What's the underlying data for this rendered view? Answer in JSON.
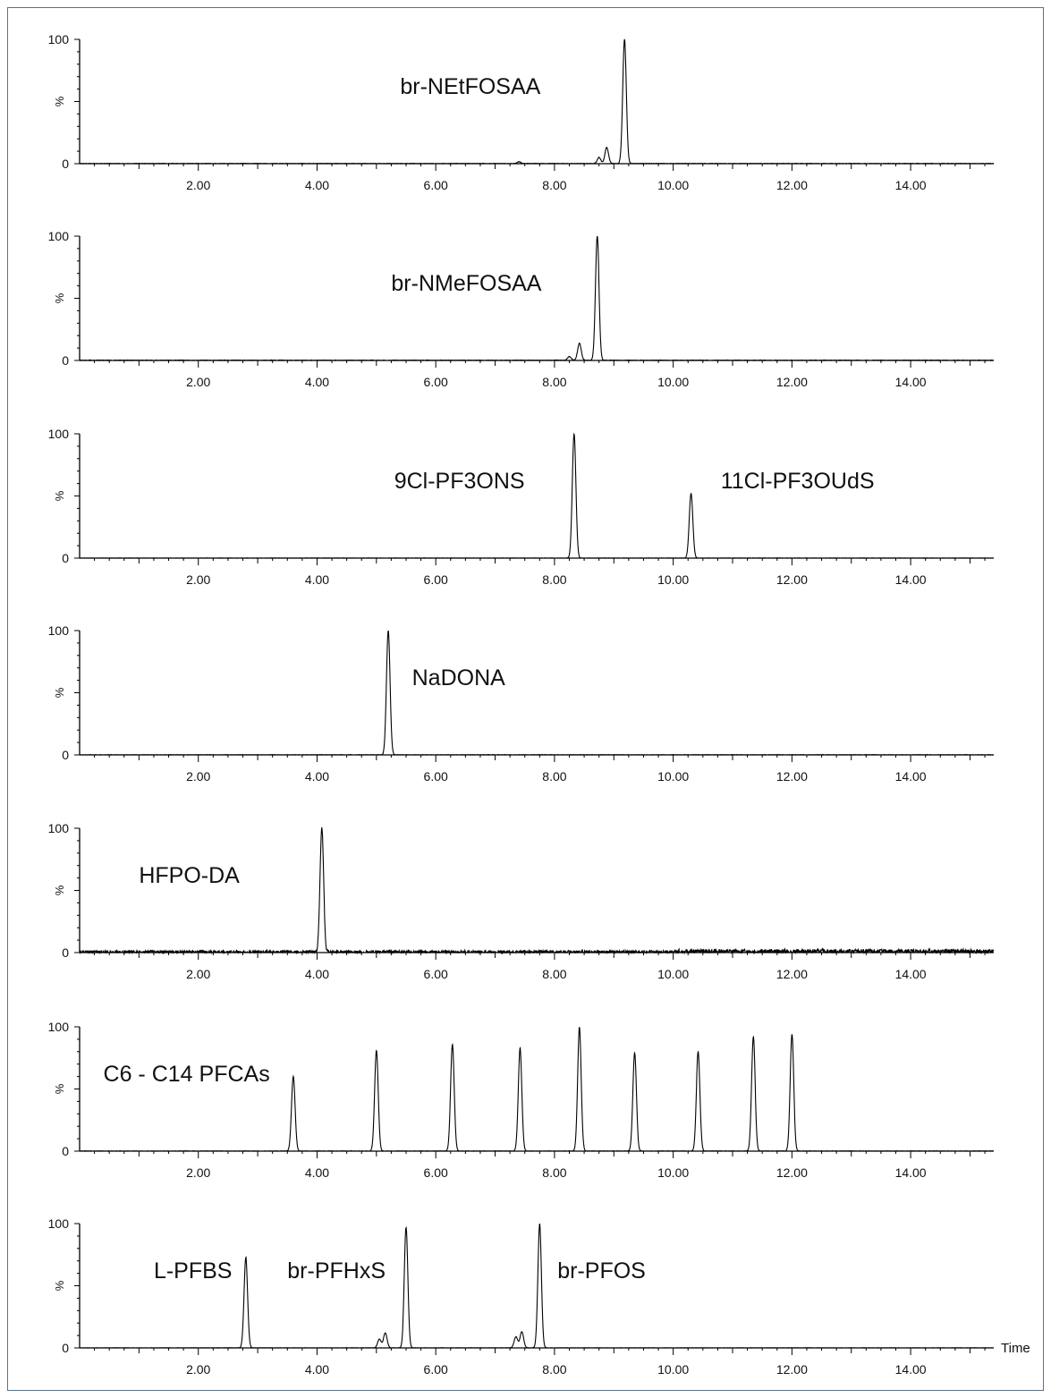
{
  "chart_data": [
    {
      "type": "line",
      "title": "",
      "xlabel": "",
      "ylabel": "%",
      "xlim": [
        0,
        15.4
      ],
      "ylim": [
        0,
        100
      ],
      "x_ticks": [
        "2.00",
        "4.00",
        "6.00",
        "8.00",
        "10.00",
        "12.00",
        "14.00"
      ],
      "y_ticks": [
        "0",
        "100"
      ],
      "labels": [
        {
          "text": "br-NEtFOSAA",
          "x": 5.4
        }
      ],
      "baseline_noise": 0.4,
      "peaks": [
        {
          "rt": 7.4,
          "height": 1.5
        },
        {
          "rt": 8.75,
          "height": 5
        },
        {
          "rt": 8.88,
          "height": 13
        },
        {
          "rt": 9.18,
          "height": 100
        }
      ]
    },
    {
      "type": "line",
      "title": "",
      "xlabel": "",
      "ylabel": "%",
      "xlim": [
        0,
        15.4
      ],
      "ylim": [
        0,
        100
      ],
      "x_ticks": [
        "2.00",
        "4.00",
        "6.00",
        "8.00",
        "10.00",
        "12.00",
        "14.00"
      ],
      "y_ticks": [
        "0",
        "100"
      ],
      "labels": [
        {
          "text": "br-NMeFOSAA",
          "x": 5.25
        }
      ],
      "baseline_noise": 0.5,
      "peaks": [
        {
          "rt": 8.25,
          "height": 3
        },
        {
          "rt": 8.42,
          "height": 14
        },
        {
          "rt": 8.72,
          "height": 100
        }
      ]
    },
    {
      "type": "line",
      "title": "",
      "xlabel": "",
      "ylabel": "%",
      "xlim": [
        0,
        15.4
      ],
      "ylim": [
        0,
        100
      ],
      "x_ticks": [
        "2.00",
        "4.00",
        "6.00",
        "8.00",
        "10.00",
        "12.00",
        "14.00"
      ],
      "y_ticks": [
        "0",
        "100"
      ],
      "labels": [
        {
          "text": "9Cl-PF3ONS",
          "x": 5.3
        },
        {
          "text": "11Cl-PF3OUdS",
          "x": 10.8
        }
      ],
      "baseline_noise": 0.2,
      "peaks": [
        {
          "rt": 8.33,
          "height": 100
        },
        {
          "rt": 10.3,
          "height": 52
        }
      ]
    },
    {
      "type": "line",
      "title": "",
      "xlabel": "",
      "ylabel": "%",
      "xlim": [
        0,
        15.4
      ],
      "ylim": [
        0,
        100
      ],
      "x_ticks": [
        "2.00",
        "4.00",
        "6.00",
        "8.00",
        "10.00",
        "12.00",
        "14.00"
      ],
      "y_ticks": [
        "0",
        "100"
      ],
      "labels": [
        {
          "text": "NaDONA",
          "x": 5.6
        }
      ],
      "baseline_noise": 0.3,
      "peaks": [
        {
          "rt": 5.2,
          "height": 100
        }
      ]
    },
    {
      "type": "line",
      "title": "",
      "xlabel": "",
      "ylabel": "%",
      "xlim": [
        0,
        15.4
      ],
      "ylim": [
        0,
        100
      ],
      "x_ticks": [
        "2.00",
        "4.00",
        "6.00",
        "8.00",
        "10.00",
        "12.00",
        "14.00"
      ],
      "y_ticks": [
        "0",
        "100"
      ],
      "labels": [
        {
          "text": "HFPO-DA",
          "x": 1.0
        }
      ],
      "baseline_noise": 2.5,
      "peaks": [
        {
          "rt": 4.08,
          "height": 100
        }
      ]
    },
    {
      "type": "line",
      "title": "",
      "xlabel": "",
      "ylabel": "%",
      "xlim": [
        0,
        15.4
      ],
      "ylim": [
        0,
        100
      ],
      "x_ticks": [
        "2.00",
        "4.00",
        "6.00",
        "8.00",
        "10.00",
        "12.00",
        "14.00"
      ],
      "y_ticks": [
        "0",
        "100"
      ],
      "labels": [
        {
          "text": "C6 - C14 PFCAs",
          "x": 0.4
        }
      ],
      "baseline_noise": 0.3,
      "peaks": [
        {
          "rt": 3.6,
          "height": 60
        },
        {
          "rt": 5.0,
          "height": 81
        },
        {
          "rt": 6.28,
          "height": 86
        },
        {
          "rt": 7.42,
          "height": 83
        },
        {
          "rt": 8.42,
          "height": 100
        },
        {
          "rt": 9.35,
          "height": 79
        },
        {
          "rt": 10.42,
          "height": 80
        },
        {
          "rt": 11.35,
          "height": 92
        },
        {
          "rt": 12.0,
          "height": 94
        }
      ]
    },
    {
      "type": "line",
      "title": "",
      "xlabel": "Time",
      "ylabel": "%",
      "xlim": [
        0,
        15.4
      ],
      "ylim": [
        0,
        100
      ],
      "x_ticks": [
        "2.00",
        "4.00",
        "6.00",
        "8.00",
        "10.00",
        "12.00",
        "14.00"
      ],
      "y_ticks": [
        "0",
        "100"
      ],
      "labels": [
        {
          "text": "L-PFBS",
          "x": 1.25
        },
        {
          "text": "br-PFHxS",
          "x": 3.5
        },
        {
          "text": "br-PFOS",
          "x": 8.05
        }
      ],
      "baseline_noise": 0.2,
      "peaks": [
        {
          "rt": 2.8,
          "height": 73
        },
        {
          "rt": 5.05,
          "height": 7
        },
        {
          "rt": 5.15,
          "height": 12
        },
        {
          "rt": 5.5,
          "height": 97
        },
        {
          "rt": 7.35,
          "height": 9
        },
        {
          "rt": 7.45,
          "height": 13
        },
        {
          "rt": 7.75,
          "height": 100
        }
      ]
    }
  ]
}
